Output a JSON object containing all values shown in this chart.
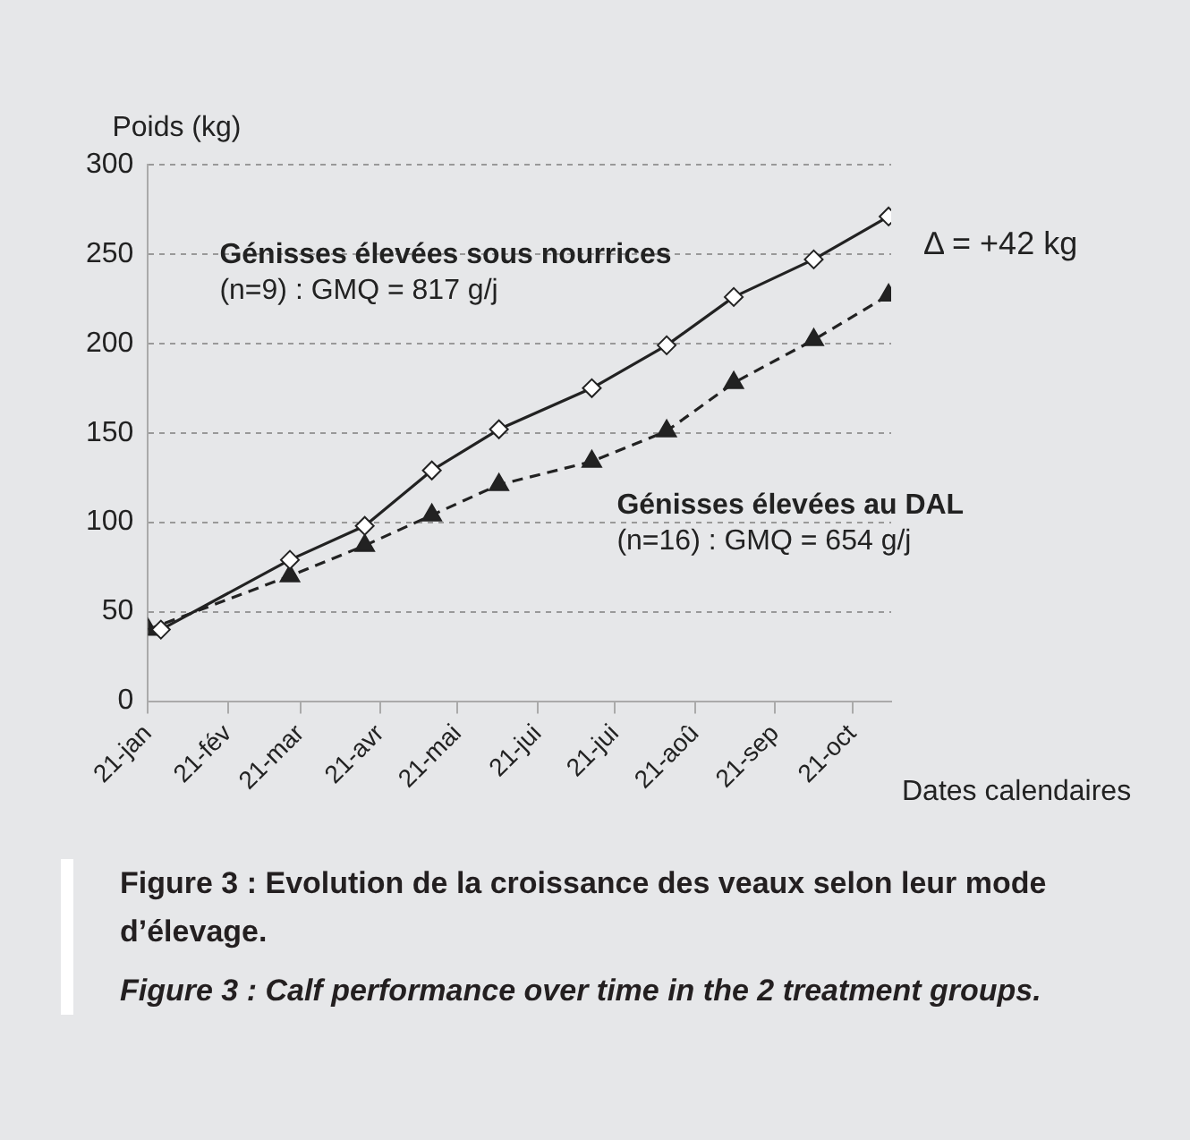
{
  "chart_data": {
    "type": "line",
    "ylabel": "Poids (kg)",
    "xlabel": "Dates calendaires",
    "x": [
      "--01-26",
      "--03-17",
      "--04-15",
      "--05-11",
      "--06-06",
      "--07-12",
      "--08-10",
      "--09-05",
      "--10-06",
      "--11-04"
    ],
    "series": [
      {
        "name": "Génisses élevées sous nourrices",
        "color": "#222222",
        "marker": "diamond",
        "line_style": "solid",
        "values": [
          40,
          79,
          98,
          129,
          152,
          175,
          199,
          226,
          247,
          271
        ]
      },
      {
        "name": "Génisses élevées au DAL",
        "color": "#222222",
        "marker": "triangle",
        "line_style": "dashed",
        "x": [
          "--01-21",
          "--03-17",
          "--04-15",
          "--05-11",
          "--06-06",
          "--07-12",
          "--08-10",
          "--09-05",
          "--10-06",
          "--11-04"
        ],
        "values": [
          40,
          70,
          87,
          104,
          121,
          134,
          151,
          178,
          202,
          227
        ]
      }
    ],
    "xlim": [
      "--01-21",
      "--11-05"
    ],
    "xticks": [
      {
        "value": "--01-21",
        "label": "21-jan"
      },
      {
        "value": "--02-21",
        "label": "21-fév"
      },
      {
        "value": "--03-21",
        "label": "21-mar"
      },
      {
        "value": "--04-21",
        "label": "21-avr"
      },
      {
        "value": "--05-21",
        "label": "21-mai"
      },
      {
        "value": "--06-21",
        "label": "21-jui"
      },
      {
        "value": "--07-21",
        "label": "21-jui"
      },
      {
        "value": "--08-21",
        "label": "21-aoû"
      },
      {
        "value": "--09-21",
        "label": "21-sep"
      },
      {
        "value": "--10-21",
        "label": "21-oct"
      }
    ],
    "ylim": [
      0,
      300
    ],
    "yticks": [
      0,
      50,
      100,
      150,
      200,
      250,
      300
    ],
    "grid": "y",
    "legend": false,
    "annotations": [
      "(n=9) : GMQ = 817 g/j",
      "(n=16) : GMQ = 654 g/j",
      "Δ = +42 kg",
      "Figure 3 : Evolution de la croissance des veaux selon leur mode d’élevage.",
      "Figure 3 : Calf performance over time in the 2 treatment groups."
    ]
  }
}
